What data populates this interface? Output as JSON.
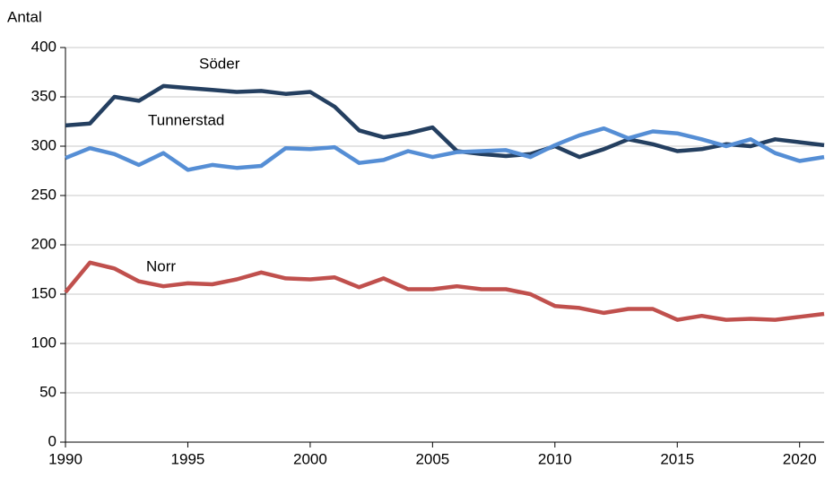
{
  "chart_data": {
    "type": "line",
    "y_label": "Antal",
    "x": [
      1990,
      1991,
      1992,
      1993,
      1994,
      1995,
      1996,
      1997,
      1998,
      1999,
      2000,
      2001,
      2002,
      2003,
      2004,
      2005,
      2006,
      2007,
      2008,
      2009,
      2010,
      2011,
      2012,
      2013,
      2014,
      2015,
      2016,
      2017,
      2018,
      2019,
      2020,
      2021
    ],
    "series": [
      {
        "name": "Söder",
        "color": "#243f60",
        "values": [
          321,
          323,
          350,
          346,
          361,
          359,
          357,
          355,
          356,
          353,
          355,
          340,
          316,
          309,
          313,
          319,
          295,
          292,
          290,
          292,
          300,
          289,
          297,
          307,
          302,
          295,
          297,
          302,
          300,
          307,
          304,
          301
        ]
      },
      {
        "name": "Tunnerstad",
        "color": "#558ed5",
        "values": [
          288,
          298,
          292,
          281,
          293,
          276,
          281,
          278,
          280,
          298,
          297,
          299,
          283,
          286,
          295,
          289,
          294,
          295,
          296,
          289,
          301,
          311,
          318,
          308,
          315,
          313,
          307,
          300,
          307,
          293,
          285,
          289
        ]
      },
      {
        "name": "Norr",
        "color": "#c0504d",
        "values": [
          152,
          182,
          176,
          163,
          158,
          161,
          160,
          165,
          172,
          166,
          165,
          167,
          157,
          166,
          155,
          155,
          158,
          155,
          155,
          150,
          138,
          136,
          131,
          135,
          135,
          124,
          128,
          124,
          125,
          124,
          127,
          130
        ]
      }
    ],
    "xlim": [
      1990,
      2021
    ],
    "xticks": [
      1990,
      1995,
      2000,
      2005,
      2010,
      2015,
      2020
    ],
    "ylim": [
      0,
      400
    ],
    "yticks": [
      0,
      50,
      100,
      150,
      200,
      250,
      300,
      350,
      400
    ],
    "grid": true
  }
}
